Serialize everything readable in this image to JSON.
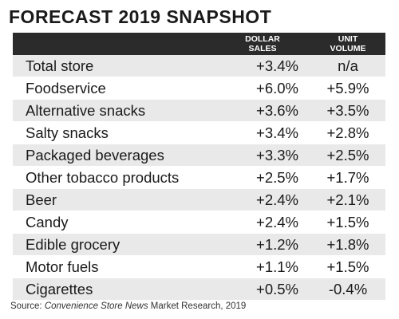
{
  "title": "FORECAST 2019 SNAPSHOT",
  "source": {
    "prefix": "Source: ",
    "publication": "Convenience Store News",
    "suffix": " Market Research, 2019"
  },
  "chart_data": {
    "type": "table",
    "title": "FORECAST 2019 SNAPSHOT",
    "columns": [
      "DOLLAR SALES",
      "UNIT VOLUME"
    ],
    "categories": [
      "Total store",
      "Foodservice",
      "Alternative snacks",
      "Salty snacks",
      "Packaged beverages",
      "Other tobacco products",
      "Beer",
      "Candy",
      "Edible grocery",
      "Motor fuels",
      "Cigarettes"
    ],
    "series": [
      {
        "name": "DOLLAR SALES",
        "values": [
          "+3.4%",
          "+6.0%",
          "+3.6%",
          "+3.4%",
          "+3.3%",
          "+2.5%",
          "+2.4%",
          "+2.4%",
          "+1.2%",
          "+1.1%",
          "+0.5%"
        ]
      },
      {
        "name": "UNIT VOLUME",
        "values": [
          "n/a",
          "+5.9%",
          "+3.5%",
          "+2.8%",
          "+2.5%",
          "+1.7%",
          "+2.1%",
          "+1.5%",
          "+1.8%",
          "+1.5%",
          "-0.4%"
        ]
      }
    ]
  }
}
